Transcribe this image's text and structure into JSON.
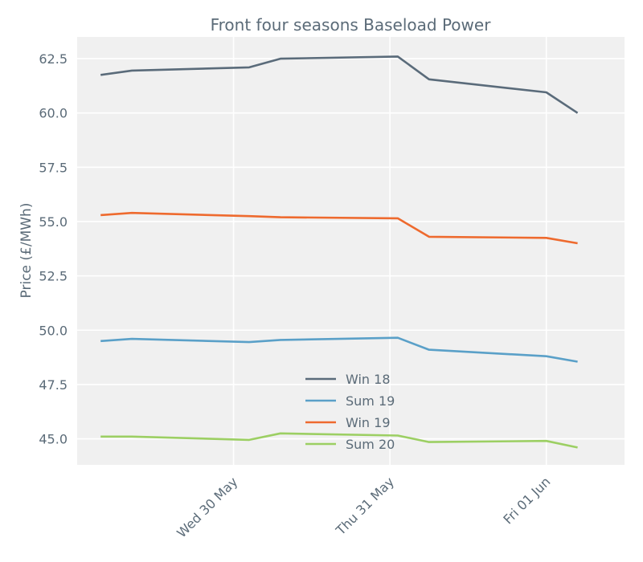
{
  "chart_data": {
    "type": "line",
    "title": "Front four seasons Baseload Power",
    "xlabel": "",
    "ylabel": "Price (£/MWh)",
    "ylim": [
      43.8,
      63.5
    ],
    "yticks": [
      45.0,
      47.5,
      50.0,
      52.5,
      55.0,
      57.5,
      60.0,
      62.5
    ],
    "ytick_labels": [
      "45.0",
      "47.5",
      "50.0",
      "52.5",
      "55.0",
      "57.5",
      "60.0",
      "62.5"
    ],
    "xlim": [
      0,
      3.5
    ],
    "xticks": [
      1,
      2,
      3
    ],
    "xtick_labels": [
      "Wed 30 May",
      "Thu 31 May",
      "Fri 01 Jun"
    ],
    "x": [
      0.15,
      0.35,
      1.1,
      1.3,
      2.05,
      2.25,
      3.0,
      3.2
    ],
    "grid": true,
    "legend_position": "lower-center",
    "series": [
      {
        "name": "Win 18",
        "color": "#5a6b7a",
        "values": [
          61.75,
          61.95,
          62.1,
          62.5,
          62.6,
          61.55,
          60.95,
          60.0
        ]
      },
      {
        "name": "Sum 19",
        "color": "#5aa0c8",
        "values": [
          49.5,
          49.6,
          49.45,
          49.55,
          49.65,
          49.1,
          48.8,
          48.55
        ]
      },
      {
        "name": "Win 19",
        "color": "#ee6a2e",
        "values": [
          55.3,
          55.4,
          55.25,
          55.2,
          55.15,
          54.3,
          54.25,
          54.0
        ]
      },
      {
        "name": "Sum 20",
        "color": "#9ccf63",
        "values": [
          45.1,
          45.1,
          44.95,
          45.25,
          45.15,
          44.85,
          44.9,
          44.6
        ]
      }
    ]
  }
}
